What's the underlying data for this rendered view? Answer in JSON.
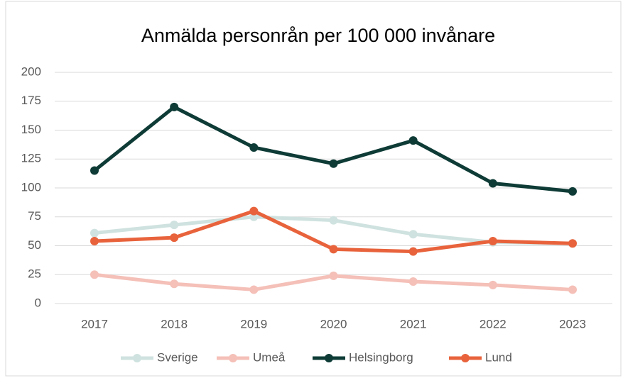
{
  "chart_data": {
    "type": "line",
    "title": "Anmälda personrån per 100 000 invånare",
    "categories": [
      "2017",
      "2018",
      "2019",
      "2020",
      "2021",
      "2022",
      "2023"
    ],
    "series": [
      {
        "name": "Sverige",
        "color": "#cfe2df",
        "values": [
          61,
          68,
          75,
          72,
          60,
          53,
          52
        ]
      },
      {
        "name": "Umeå",
        "color": "#f4c0b8",
        "values": [
          25,
          17,
          12,
          24,
          19,
          16,
          12
        ]
      },
      {
        "name": "Helsingborg",
        "color": "#0e3b36",
        "values": [
          115,
          170,
          135,
          121,
          141,
          104,
          97
        ]
      },
      {
        "name": "Lund",
        "color": "#e8633c",
        "values": [
          54,
          57,
          80,
          47,
          45,
          54,
          52
        ]
      }
    ],
    "ylim": [
      0,
      200
    ],
    "yticks": [
      0,
      25,
      50,
      75,
      100,
      125,
      150,
      175,
      200
    ],
    "grid": true,
    "legend": "bottom"
  }
}
